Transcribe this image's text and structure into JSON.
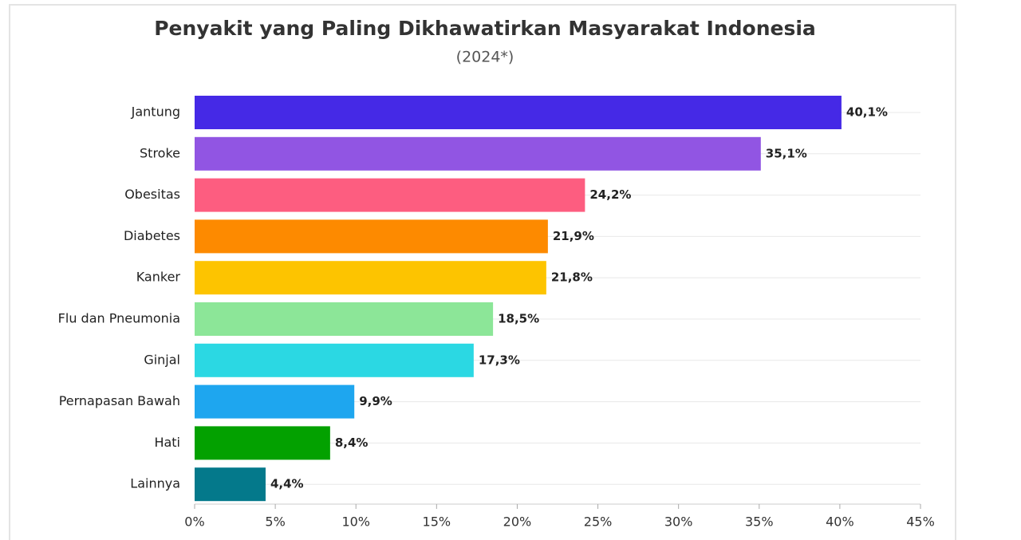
{
  "chart_data": {
    "type": "hbar",
    "title": "Penyakit yang Paling Dikhawatirkan Masyarakat Indonesia",
    "subtitle": "(2024*)",
    "categories": [
      "Jantung",
      "Stroke",
      "Obesitas",
      "Diabetes",
      "Kanker",
      "Flu dan Pneumonia",
      "Ginjal",
      "Pernapasan Bawah",
      "Hati",
      "Lainnya"
    ],
    "values": [
      40.1,
      35.1,
      24.2,
      21.9,
      21.8,
      18.5,
      17.3,
      9.9,
      8.4,
      4.4
    ],
    "value_labels": [
      "40,1%",
      "35,1%",
      "24,2%",
      "21,9%",
      "21,8%",
      "18,5%",
      "17,3%",
      "9,9%",
      "8,4%",
      "4,4%"
    ],
    "colors": [
      "#4529e6",
      "#9155e3",
      "#fd5d80",
      "#fd8a00",
      "#fdc400",
      "#8ce698",
      "#2bd8e3",
      "#1ea6ef",
      "#03a100",
      "#04798b"
    ],
    "xlim": [
      0,
      45
    ],
    "xticks": [
      {
        "value": 0,
        "label": "0%"
      },
      {
        "value": 5,
        "label": "5%"
      },
      {
        "value": 10,
        "label": "10%"
      },
      {
        "value": 15,
        "label": "15%"
      },
      {
        "value": 20,
        "label": "20%"
      },
      {
        "value": 25,
        "label": "25%"
      },
      {
        "value": 30,
        "label": "30%"
      },
      {
        "value": 35,
        "label": "35%"
      },
      {
        "value": 40,
        "label": "40%"
      },
      {
        "value": 45,
        "label": "45%"
      }
    ]
  }
}
